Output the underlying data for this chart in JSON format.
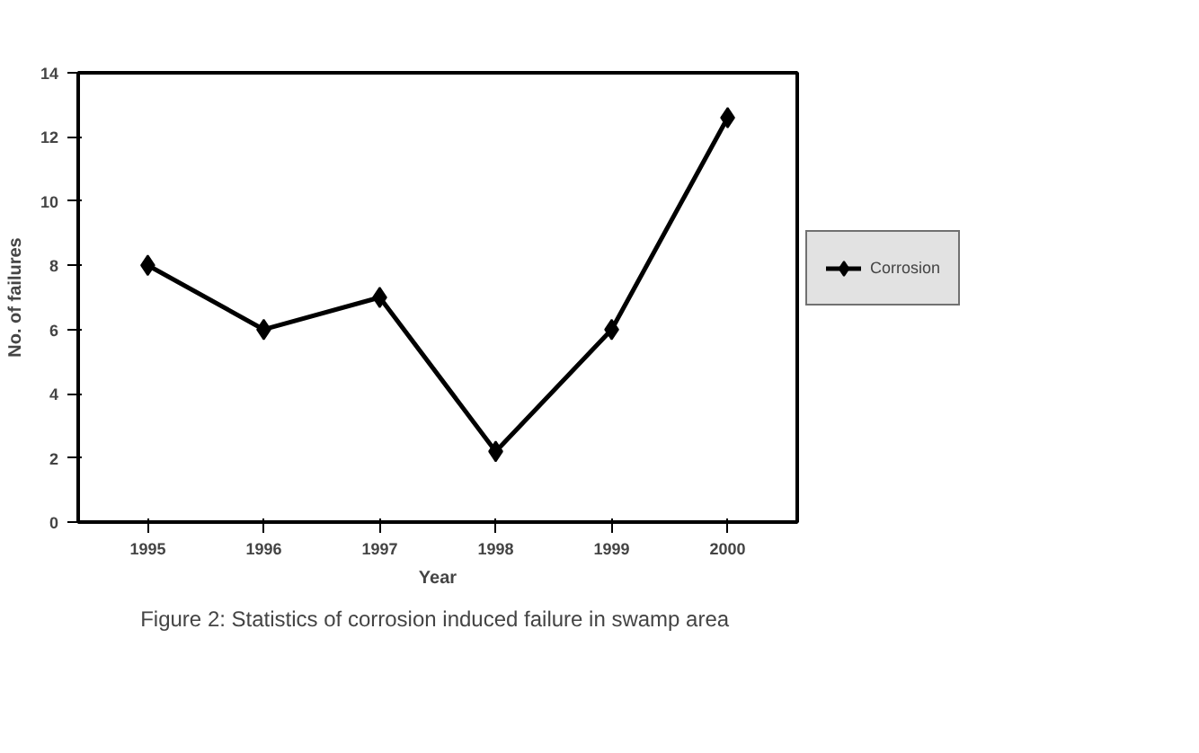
{
  "chart_data": {
    "type": "line",
    "xlabel": "Year",
    "ylabel": "No. of failures",
    "categories": [
      "1995",
      "1996",
      "1997",
      "1998",
      "1999",
      "2000"
    ],
    "series": [
      {
        "name": "Corrosion",
        "color": "#000000",
        "values": [
          8,
          6,
          7,
          2.2,
          6,
          12.6
        ]
      }
    ],
    "ylim": [
      0,
      14
    ],
    "yticks": [
      0,
      2,
      4,
      6,
      8,
      10,
      12,
      14
    ],
    "marker": "diamond",
    "line_style": "solid",
    "grid": false,
    "legend": "right",
    "annotations": [
      "Figure 2:  Statistics of corrosion induced failure in swamp area"
    ]
  }
}
